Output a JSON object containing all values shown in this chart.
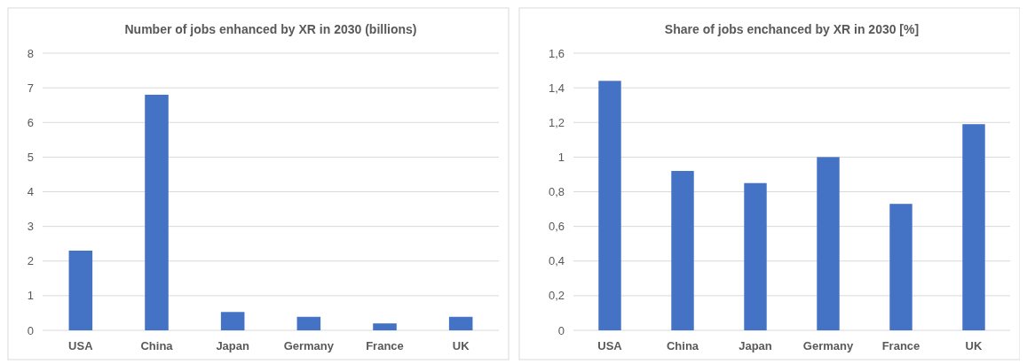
{
  "chart_data": [
    {
      "type": "bar",
      "title": "Number of jobs enhanced by XR in 2030 (billions)",
      "categories": [
        "USA",
        "China",
        "Japan",
        "Germany",
        "France",
        "UK"
      ],
      "values": [
        2.3,
        6.8,
        0.53,
        0.39,
        0.2,
        0.39
      ],
      "color": "#4472c4",
      "ylim": [
        0,
        8
      ],
      "yticks": [
        0,
        1,
        2,
        3,
        4,
        5,
        6,
        7,
        8
      ],
      "grid": "y"
    },
    {
      "type": "bar",
      "title": "Share of jobs enchanced by XR in 2030 [%]",
      "categories": [
        "USA",
        "China",
        "Japan",
        "Germany",
        "France",
        "UK"
      ],
      "values": [
        1.44,
        0.92,
        0.85,
        1.0,
        0.73,
        1.19
      ],
      "color": "#4472c4",
      "ylim": [
        0,
        1.6
      ],
      "yticks": [
        0,
        {
          "value": 0.2,
          "label": "0,2"
        },
        {
          "value": 0.4,
          "label": "0,4"
        },
        {
          "value": 0.6,
          "label": "0,6"
        },
        {
          "value": 0.8,
          "label": "0,8"
        },
        1,
        {
          "value": 1.2,
          "label": "1,2"
        },
        {
          "value": 1.4,
          "label": "1,4"
        },
        {
          "value": 1.6,
          "label": "1,6"
        }
      ],
      "grid": "y"
    }
  ]
}
